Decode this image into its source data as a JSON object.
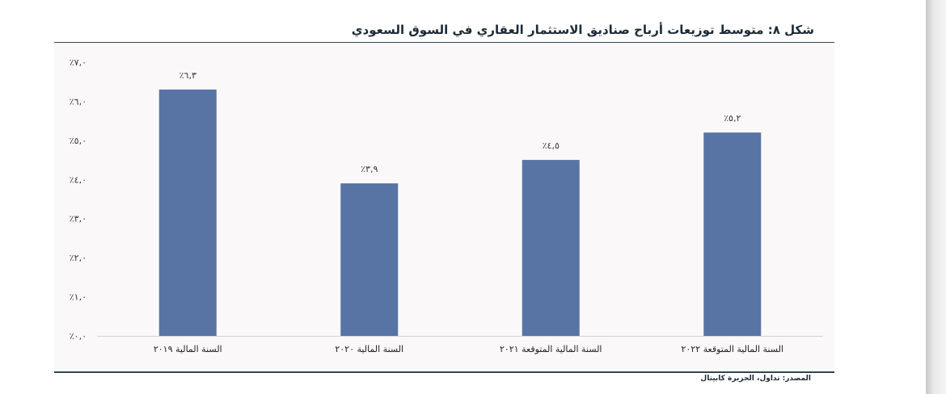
{
  "header": {
    "title": "شكل ٨:  متوسط توزيعات أرباح صناديق الاستثمار العقاري في السوق السعودي"
  },
  "footer": {
    "source": "المصدر: تداول، الجزيرة كابيتال"
  },
  "colors": {
    "bar": "#5874a5",
    "rule": "#2d4652",
    "plot_background": "#fbf8fa"
  },
  "chart_data": {
    "type": "bar",
    "title": "شكل ٨:  متوسط توزيعات أرباح صناديق الاستثمار العقاري في السوق السعودي",
    "categories": [
      "السنة المالية ٢٠١٩",
      "السنة المالية ٢٠٢٠",
      "السنة المالية المتوقعة ٢٠٢١",
      "السنة المالية المتوقعة ٢٠٢٢"
    ],
    "values": [
      6.3,
      3.9,
      4.5,
      5.2
    ],
    "data_labels": [
      "٪٦,٣",
      "٪٣,٩",
      "٪٤,٥",
      "٪٥,٢"
    ],
    "ylim": [
      0,
      7
    ],
    "yticks": [
      0,
      1,
      2,
      3,
      4,
      5,
      6,
      7
    ],
    "ytick_labels": [
      "٪٠,٠",
      "٪١,٠",
      "٪٢,٠",
      "٪٣,٠",
      "٪٤,٠",
      "٪٥,٠",
      "٪٦,٠",
      "٪٧,٠"
    ],
    "xlabel": "",
    "ylabel": "",
    "grid": false,
    "legend": "none"
  }
}
